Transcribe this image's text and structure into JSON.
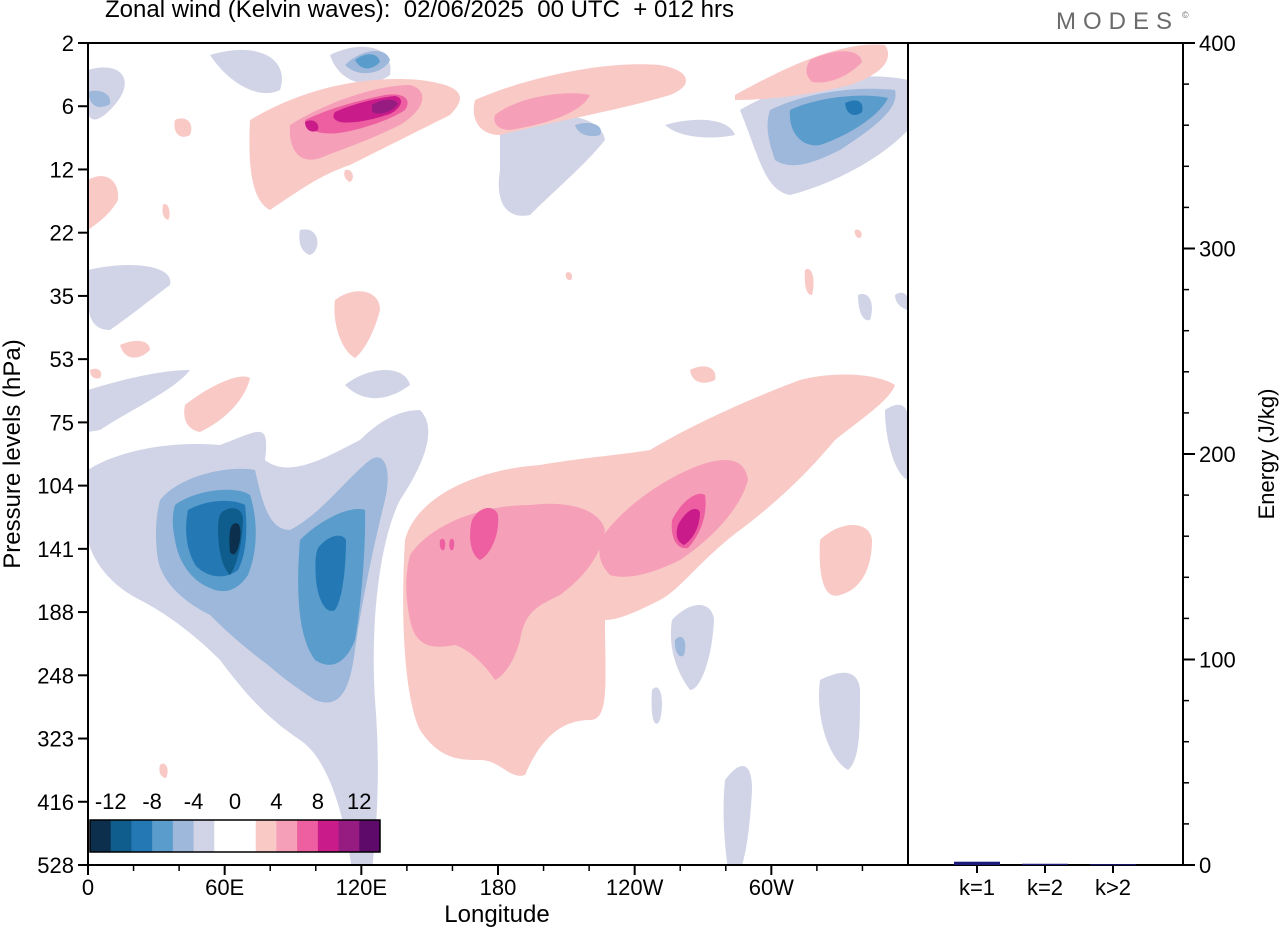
{
  "title": "Zonal wind (Kelvin waves):  02/06/2025  00 UTC  + 012 hrs",
  "brand": "MODES",
  "brand_mark": "©",
  "chart_data": [
    {
      "type": "heatmap",
      "title": "Zonal wind (Kelvin waves):  02/06/2025  00 UTC  + 012 hrs",
      "xlabel": "Longitude",
      "ylabel": "Pressure levels (hPa)",
      "x_ticks": [
        "0",
        "60E",
        "120E",
        "180",
        "120W",
        "60W"
      ],
      "y_ticks": [
        "2",
        "6",
        "12",
        "22",
        "35",
        "53",
        "75",
        "104",
        "141",
        "188",
        "248",
        "323",
        "416",
        "528"
      ],
      "colorbar": {
        "labels": [
          "-12",
          "-8",
          "-4",
          "0",
          "4",
          "8",
          "12"
        ],
        "colors": [
          "#0b2f4d",
          "#0f5d8c",
          "#2479b5",
          "#5a9ccb",
          "#9db8da",
          "#d1d4e7",
          "#ffffff",
          "#ffffff",
          "#f9c9c6",
          "#f5a0b8",
          "#ed5fa1",
          "#c91b8a",
          "#961c82",
          "#5d0a6b"
        ]
      },
      "features": [
        {
          "sign": "negative",
          "level": -14,
          "lon_range": [
            60,
            70
          ],
          "p_range": [
            120,
            160
          ]
        },
        {
          "sign": "negative",
          "level": -8,
          "lon_range": [
            45,
            75
          ],
          "p_range": [
            104,
            220
          ]
        },
        {
          "sign": "negative",
          "level": -6,
          "lon_range": [
            100,
            115
          ],
          "p_range": [
            141,
            210
          ]
        },
        {
          "sign": "negative",
          "level": -4,
          "lon_range": [
            40,
            125
          ],
          "p_range": [
            104,
            260
          ]
        },
        {
          "sign": "positive",
          "level": 6,
          "lon_range": [
            160,
            205
          ],
          "p_range": [
            115,
            200
          ]
        },
        {
          "sign": "positive",
          "level": 8,
          "lon_range": [
            255,
            270
          ],
          "p_range": [
            110,
            150
          ]
        },
        {
          "sign": "positive",
          "level": 4,
          "lon_range": [
            145,
            300
          ],
          "p_range": [
            75,
            300
          ]
        },
        {
          "sign": "positive",
          "level": 10,
          "lon_range": [
            95,
            145
          ],
          "p_range": [
            5,
            9
          ]
        },
        {
          "sign": "negative",
          "level": -6,
          "lon_range": [
            300,
            345
          ],
          "p_range": [
            5,
            12
          ]
        }
      ]
    },
    {
      "type": "bar",
      "categories": [
        "k=1",
        "k=2",
        "k>2"
      ],
      "values": [
        1.6,
        0.6,
        0.4
      ],
      "ylabel": "Energy (J/kg)",
      "ylim": [
        0,
        400
      ],
      "y_ticks": [
        "0",
        "100",
        "200",
        "300",
        "400"
      ],
      "bar_color": "#1a1a7a"
    }
  ]
}
